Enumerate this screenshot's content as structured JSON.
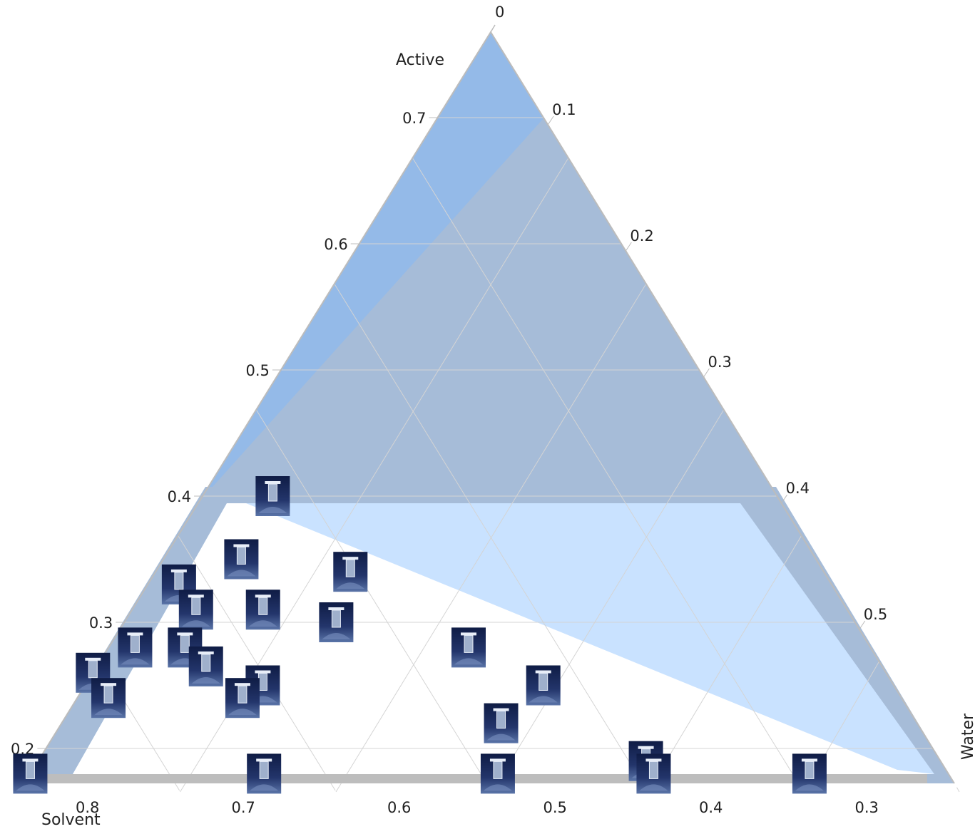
{
  "chart_data": {
    "type": "scatter",
    "subtype": "ternary",
    "title": "",
    "axes": {
      "active": {
        "label": "Active",
        "ticks": [
          "0.7",
          "0.6",
          "0.5",
          "0.4",
          "0.3",
          "0.2"
        ],
        "tick_values": [
          0.7,
          0.6,
          0.5,
          0.4,
          0.3,
          0.2
        ],
        "apex_tick": "0"
      },
      "water": {
        "label": "Water",
        "ticks": [
          "0.1",
          "0.2",
          "0.3",
          "0.4",
          "0.5"
        ],
        "tick_values": [
          0.1,
          0.2,
          0.3,
          0.4,
          0.5
        ]
      },
      "solvent": {
        "label": "Solvent",
        "ticks": [
          "0.8",
          "0.7",
          "0.6",
          "0.5",
          "0.4",
          "0.3"
        ],
        "tick_values": [
          0.8,
          0.7,
          0.6,
          0.5,
          0.4,
          0.3
        ]
      }
    },
    "grid": true,
    "regions": [
      {
        "name": "",
        "color": "#94bae8",
        "active_max": 0.8
      },
      {
        "name": "",
        "color": "#a6bcd8",
        "water_min": 0.1
      },
      {
        "name": "",
        "color": "#a6bcd8",
        "active_max": 0.4,
        "active_min": 0.18,
        "water_max": 0.55,
        "water_min": 0.02
      },
      {
        "name": "",
        "color": "#c9e2ff",
        "description_points": "upper-right lighter band"
      }
    ],
    "points": [
      {
        "active": 0.4,
        "water": 0.045
      },
      {
        "active": 0.35,
        "water": 0.05
      },
      {
        "active": 0.33,
        "water": 0.02
      },
      {
        "active": 0.34,
        "water": 0.125
      },
      {
        "active": 0.31,
        "water": 0.041
      },
      {
        "active": 0.31,
        "water": 0.084
      },
      {
        "active": 0.28,
        "water": 0.017
      },
      {
        "active": 0.28,
        "water": 0.049
      },
      {
        "active": 0.26,
        "water": 0.0
      },
      {
        "active": 0.24,
        "water": 0.02
      },
      {
        "active": 0.265,
        "water": 0.07
      },
      {
        "active": 0.25,
        "water": 0.114
      },
      {
        "active": 0.24,
        "water": 0.106
      },
      {
        "active": 0.3,
        "water": 0.136
      },
      {
        "active": 0.28,
        "water": 0.231
      },
      {
        "active": 0.25,
        "water": 0.294
      },
      {
        "active": 0.22,
        "water": 0.282
      },
      {
        "active": 0.18,
        "water": 0.0
      },
      {
        "active": 0.18,
        "water": 0.15
      },
      {
        "active": 0.18,
        "water": 0.3
      },
      {
        "active": 0.19,
        "water": 0.39
      },
      {
        "active": 0.18,
        "water": 0.4
      },
      {
        "active": 0.18,
        "water": 0.5
      }
    ],
    "marker_color": "#1b2a57",
    "line_color": "#bdbdbd"
  }
}
